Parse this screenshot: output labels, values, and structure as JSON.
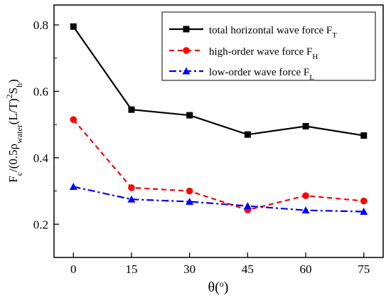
{
  "chart_data": {
    "type": "line",
    "x": [
      0,
      15,
      30,
      45,
      60,
      75
    ],
    "x_ticks": [
      "0",
      "15",
      "30",
      "45",
      "60",
      "75"
    ],
    "xlim": [
      -5,
      80
    ],
    "ylim": [
      0.1,
      0.86
    ],
    "y_ticks": [
      0.2,
      0.4,
      0.6,
      0.8
    ],
    "y_tick_labels": [
      "0.2",
      "0.4",
      "0.6",
      "0.8"
    ],
    "xlabel": {
      "main": "θ",
      "paren_open": "(",
      "degree": "o",
      "paren_close": ")"
    },
    "ylabel": {
      "p1": "F",
      "p1_sub": "c",
      "p2": "/(0.5ρ",
      "p2_sub": "water",
      "p3": "(L/T)",
      "p3_sup": "2",
      "p4": "S",
      "p4_sub": "h",
      "p5": ")"
    },
    "legend_position": "top-right",
    "series": [
      {
        "name": "total horizontal wave force F",
        "name_sub": "T",
        "values": [
          0.795,
          0.545,
          0.528,
          0.47,
          0.495,
          0.467
        ],
        "color": "#000000",
        "marker": "square",
        "dash": "solid"
      },
      {
        "name": "high-order wave force F",
        "name_sub": "H",
        "values": [
          0.515,
          0.31,
          0.3,
          0.243,
          0.286,
          0.27
        ],
        "color": "#ff0000",
        "marker": "circle",
        "dash": "dash"
      },
      {
        "name": "low-order wave force F",
        "name_sub": "L",
        "values": [
          0.313,
          0.275,
          0.268,
          0.255,
          0.242,
          0.238
        ],
        "color": "#0000ff",
        "marker": "triangle",
        "dash": "dashdot"
      }
    ]
  }
}
